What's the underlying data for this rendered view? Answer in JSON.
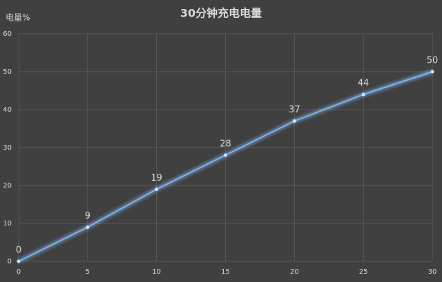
{
  "chart_data": {
    "type": "line",
    "title": "30分钟充电电量",
    "y_label": "电量%",
    "x": [
      0,
      5,
      10,
      15,
      20,
      25,
      30
    ],
    "values": [
      0,
      9,
      19,
      28,
      37,
      44,
      50
    ],
    "color": "#7db4ea",
    "xlim": [
      0,
      30
    ],
    "xticks": [
      0,
      5,
      10,
      15,
      20,
      25,
      30
    ],
    "ylim": [
      0,
      60
    ],
    "yticks": [
      0,
      10,
      20,
      30,
      40,
      50,
      60
    ],
    "grid": true
  }
}
